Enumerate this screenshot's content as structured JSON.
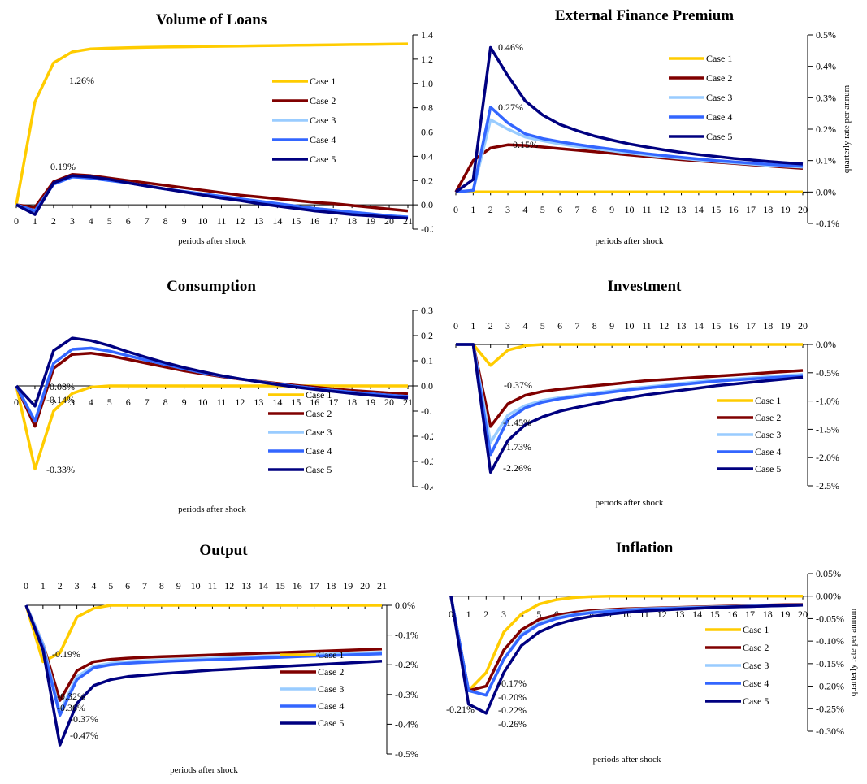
{
  "series_names": [
    "Case 1",
    "Case 2",
    "Case 3",
    "Case 4",
    "Case 5"
  ],
  "colors": [
    "#FFCC00",
    "#800000",
    "#99CCFF",
    "#3366FF",
    "#000080"
  ],
  "chart_data": [
    {
      "type": "line",
      "title": "Volume of Loans",
      "xlabel": "periods after shock",
      "ylabel": "",
      "x": [
        0,
        1,
        2,
        3,
        4,
        5,
        6,
        7,
        8,
        9,
        10,
        11,
        12,
        13,
        14,
        15,
        16,
        17,
        18,
        19,
        20,
        21
      ],
      "ylim": [
        -0.2,
        1.4
      ],
      "yticks": [
        "-0.2%",
        "0.0%",
        "0.2%",
        "0.4%",
        "0.6%",
        "0.8%",
        "1.0%",
        "1.2%",
        "1.4%"
      ],
      "legend": "middle-right",
      "annotations": [
        "1.26%",
        "0.19%"
      ],
      "series": [
        {
          "name": "Case 1",
          "values": [
            0,
            0.85,
            1.17,
            1.26,
            1.285,
            1.29,
            1.295,
            1.298,
            1.3,
            1.302,
            1.304,
            1.306,
            1.308,
            1.31,
            1.312,
            1.314,
            1.316,
            1.318,
            1.32,
            1.322,
            1.324,
            1.326
          ]
        },
        {
          "name": "Case 2",
          "values": [
            0,
            -0.02,
            0.19,
            0.25,
            0.24,
            0.22,
            0.2,
            0.18,
            0.16,
            0.14,
            0.12,
            0.1,
            0.08,
            0.065,
            0.05,
            0.035,
            0.02,
            0.01,
            -0.005,
            -0.02,
            -0.035,
            -0.05
          ]
        },
        {
          "name": "Case 3",
          "values": [
            0,
            -0.05,
            0.17,
            0.23,
            0.22,
            0.2,
            0.18,
            0.155,
            0.13,
            0.11,
            0.09,
            0.07,
            0.05,
            0.03,
            0.01,
            -0.01,
            -0.03,
            -0.045,
            -0.06,
            -0.075,
            -0.09,
            -0.1
          ]
        },
        {
          "name": "Case 4",
          "values": [
            0,
            -0.05,
            0.17,
            0.23,
            0.22,
            0.2,
            0.18,
            0.155,
            0.13,
            0.11,
            0.09,
            0.07,
            0.05,
            0.03,
            0.01,
            -0.01,
            -0.03,
            -0.045,
            -0.06,
            -0.075,
            -0.09,
            -0.1
          ]
        },
        {
          "name": "Case 5",
          "values": [
            0,
            -0.08,
            0.18,
            0.24,
            0.23,
            0.21,
            0.18,
            0.155,
            0.13,
            0.105,
            0.08,
            0.055,
            0.035,
            0.01,
            -0.01,
            -0.03,
            -0.05,
            -0.065,
            -0.08,
            -0.09,
            -0.1,
            -0.11
          ]
        }
      ]
    },
    {
      "type": "line",
      "title": "External Finance Premium",
      "xlabel": "periods after shock",
      "ylabel": "quarterly rate per annum",
      "x": [
        0,
        1,
        2,
        3,
        4,
        5,
        6,
        7,
        8,
        9,
        10,
        11,
        12,
        13,
        14,
        15,
        16,
        17,
        18,
        19,
        20
      ],
      "ylim": [
        -0.1,
        0.5
      ],
      "yticks": [
        "-0.1%",
        "0.0%",
        "0.1%",
        "0.2%",
        "0.3%",
        "0.4%",
        "0.5%"
      ],
      "legend": "top-right",
      "annotations": [
        "0.46%",
        "0.27%",
        "0.15%"
      ],
      "series": [
        {
          "name": "Case 1",
          "values": [
            0,
            0,
            0,
            0,
            0,
            0,
            0,
            0,
            0,
            0,
            0,
            0,
            0,
            0,
            0,
            0,
            0,
            0,
            0,
            0,
            0
          ]
        },
        {
          "name": "Case 2",
          "values": [
            0,
            0.1,
            0.14,
            0.15,
            0.148,
            0.143,
            0.138,
            0.133,
            0.128,
            0.123,
            0.118,
            0.113,
            0.108,
            0.103,
            0.099,
            0.095,
            0.091,
            0.087,
            0.083,
            0.079,
            0.075
          ]
        },
        {
          "name": "Case 3",
          "values": [
            0,
            0.005,
            0.23,
            0.2,
            0.175,
            0.163,
            0.153,
            0.145,
            0.138,
            0.131,
            0.124,
            0.118,
            0.112,
            0.107,
            0.102,
            0.097,
            0.093,
            0.089,
            0.085,
            0.082,
            0.079
          ]
        },
        {
          "name": "Case 4",
          "values": [
            0,
            0.005,
            0.27,
            0.22,
            0.185,
            0.17,
            0.16,
            0.151,
            0.143,
            0.136,
            0.129,
            0.122,
            0.116,
            0.11,
            0.105,
            0.1,
            0.096,
            0.092,
            0.088,
            0.085,
            0.082
          ]
        },
        {
          "name": "Case 5",
          "values": [
            0,
            0.04,
            0.46,
            0.37,
            0.29,
            0.245,
            0.215,
            0.195,
            0.178,
            0.165,
            0.153,
            0.143,
            0.134,
            0.126,
            0.119,
            0.113,
            0.107,
            0.102,
            0.097,
            0.093,
            0.089
          ]
        }
      ]
    },
    {
      "type": "line",
      "title": "Consumption",
      "xlabel": "periods after shock",
      "ylabel": "",
      "x": [
        0,
        1,
        2,
        3,
        4,
        5,
        6,
        7,
        8,
        9,
        10,
        11,
        12,
        13,
        14,
        15,
        16,
        17,
        18,
        19,
        20,
        21
      ],
      "ylim": [
        -0.4,
        0.3
      ],
      "yticks": [
        "-0.4%",
        "-0.3%",
        "-0.2%",
        "-0.1%",
        "0.0%",
        "0.1%",
        "0.2%",
        "0.3%"
      ],
      "legend": "bottom-middle",
      "annotations": [
        "-0.08%",
        "-0.14%",
        "-0.33%"
      ],
      "series": [
        {
          "name": "Case 1",
          "values": [
            0,
            -0.33,
            -0.1,
            -0.03,
            -0.005,
            0,
            0,
            0,
            0,
            0,
            0,
            0,
            0,
            0,
            0,
            0,
            0,
            0,
            0,
            0,
            0,
            0
          ]
        },
        {
          "name": "Case 2",
          "values": [
            0,
            -0.16,
            0.07,
            0.125,
            0.13,
            0.12,
            0.105,
            0.09,
            0.075,
            0.06,
            0.048,
            0.037,
            0.027,
            0.018,
            0.01,
            0.002,
            -0.005,
            -0.012,
            -0.018,
            -0.023,
            -0.028,
            -0.032
          ]
        },
        {
          "name": "Case 3",
          "values": [
            0,
            -0.14,
            0.09,
            0.145,
            0.15,
            0.138,
            0.12,
            0.102,
            0.085,
            0.068,
            0.053,
            0.04,
            0.028,
            0.017,
            0.007,
            -0.002,
            -0.01,
            -0.018,
            -0.025,
            -0.031,
            -0.037,
            -0.042
          ]
        },
        {
          "name": "Case 4",
          "values": [
            0,
            -0.14,
            0.09,
            0.145,
            0.15,
            0.138,
            0.12,
            0.102,
            0.085,
            0.068,
            0.053,
            0.04,
            0.028,
            0.017,
            0.007,
            -0.002,
            -0.01,
            -0.018,
            -0.025,
            -0.031,
            -0.037,
            -0.042
          ]
        },
        {
          "name": "Case 5",
          "values": [
            0,
            -0.08,
            0.14,
            0.19,
            0.18,
            0.16,
            0.135,
            0.113,
            0.092,
            0.073,
            0.056,
            0.041,
            0.028,
            0.016,
            0.005,
            -0.005,
            -0.014,
            -0.022,
            -0.03,
            -0.037,
            -0.043,
            -0.048
          ]
        }
      ]
    },
    {
      "type": "line",
      "title": "Investment",
      "xlabel": "periods after shock",
      "ylabel": "",
      "x": [
        0,
        1,
        2,
        3,
        4,
        5,
        6,
        7,
        8,
        9,
        10,
        11,
        12,
        13,
        14,
        15,
        16,
        17,
        18,
        19,
        20
      ],
      "ylim": [
        -2.5,
        0.0
      ],
      "yticks": [
        "-2.5%",
        "-2.0%",
        "-1.5%",
        "-1.0%",
        "-0.5%",
        "0.0%"
      ],
      "legend": "bottom-right",
      "annotations": [
        "-0.37%",
        "-1.45%",
        "-1.73%",
        "-2.26%"
      ],
      "series": [
        {
          "name": "Case 1",
          "values": [
            0,
            0,
            -0.37,
            -0.1,
            -0.02,
            0,
            0,
            0,
            0,
            0,
            0,
            0,
            0,
            0,
            0,
            0,
            0,
            0,
            0,
            0,
            0
          ]
        },
        {
          "name": "Case 2",
          "values": [
            0,
            0,
            -1.45,
            -1.05,
            -0.9,
            -0.83,
            -0.79,
            -0.76,
            -0.73,
            -0.7,
            -0.67,
            -0.64,
            -0.62,
            -0.6,
            -0.58,
            -0.56,
            -0.54,
            -0.52,
            -0.5,
            -0.48,
            -0.46
          ]
        },
        {
          "name": "Case 3",
          "values": [
            0,
            0,
            -1.73,
            -1.25,
            -1.08,
            -0.99,
            -0.94,
            -0.9,
            -0.86,
            -0.82,
            -0.78,
            -0.75,
            -0.72,
            -0.69,
            -0.66,
            -0.63,
            -0.61,
            -0.59,
            -0.57,
            -0.55,
            -0.53
          ]
        },
        {
          "name": "Case 4",
          "values": [
            0,
            0,
            -1.95,
            -1.33,
            -1.12,
            -1.02,
            -0.96,
            -0.92,
            -0.88,
            -0.84,
            -0.8,
            -0.77,
            -0.74,
            -0.71,
            -0.68,
            -0.65,
            -0.63,
            -0.61,
            -0.59,
            -0.57,
            -0.55
          ]
        },
        {
          "name": "Case 5",
          "values": [
            0,
            0,
            -2.26,
            -1.7,
            -1.42,
            -1.28,
            -1.18,
            -1.11,
            -1.05,
            -0.99,
            -0.94,
            -0.89,
            -0.85,
            -0.81,
            -0.77,
            -0.73,
            -0.7,
            -0.67,
            -0.64,
            -0.61,
            -0.58
          ]
        }
      ]
    },
    {
      "type": "line",
      "title": "Output",
      "xlabel": "periods after shock",
      "ylabel": "",
      "x": [
        0,
        1,
        2,
        3,
        4,
        5,
        6,
        7,
        8,
        9,
        10,
        11,
        12,
        13,
        14,
        15,
        16,
        17,
        18,
        19,
        20,
        21
      ],
      "ylim": [
        -0.5,
        0.0
      ],
      "yticks": [
        "-0.5%",
        "-0.4%",
        "-0.3%",
        "-0.2%",
        "-0.1%",
        "0.0%"
      ],
      "legend": "bottom-right",
      "annotations": [
        "-0.19%",
        "-0.32%",
        "-0.36%",
        "-0.37%",
        "-0.47%"
      ],
      "series": [
        {
          "name": "Case 1",
          "values": [
            0,
            -0.19,
            -0.16,
            -0.04,
            -0.01,
            0,
            0,
            0,
            0,
            0,
            0,
            0,
            0,
            0,
            0,
            0,
            0,
            0,
            0,
            0,
            0,
            0
          ]
        },
        {
          "name": "Case 2",
          "values": [
            0,
            -0.13,
            -0.32,
            -0.22,
            -0.19,
            -0.182,
            -0.178,
            -0.175,
            -0.173,
            -0.171,
            -0.169,
            -0.167,
            -0.165,
            -0.163,
            -0.161,
            -0.159,
            -0.157,
            -0.155,
            -0.153,
            -0.151,
            -0.149,
            -0.147
          ]
        },
        {
          "name": "Case 3",
          "values": [
            0,
            -0.13,
            -0.36,
            -0.24,
            -0.205,
            -0.195,
            -0.19,
            -0.187,
            -0.184,
            -0.182,
            -0.18,
            -0.178,
            -0.176,
            -0.174,
            -0.172,
            -0.17,
            -0.168,
            -0.166,
            -0.164,
            -0.162,
            -0.16,
            -0.158
          ]
        },
        {
          "name": "Case 4",
          "values": [
            0,
            -0.14,
            -0.37,
            -0.25,
            -0.21,
            -0.2,
            -0.195,
            -0.192,
            -0.189,
            -0.187,
            -0.185,
            -0.183,
            -0.181,
            -0.179,
            -0.177,
            -0.175,
            -0.173,
            -0.171,
            -0.169,
            -0.167,
            -0.165,
            -0.163
          ]
        },
        {
          "name": "Case 5",
          "values": [
            0,
            -0.15,
            -0.47,
            -0.33,
            -0.27,
            -0.25,
            -0.24,
            -0.235,
            -0.23,
            -0.226,
            -0.222,
            -0.218,
            -0.215,
            -0.212,
            -0.209,
            -0.206,
            -0.203,
            -0.2,
            -0.197,
            -0.194,
            -0.191,
            -0.188
          ]
        }
      ]
    },
    {
      "type": "line",
      "title": "Inflation",
      "xlabel": "periods after shock",
      "ylabel": "quarterly rate per annum",
      "x": [
        0,
        1,
        2,
        3,
        4,
        5,
        6,
        7,
        8,
        9,
        10,
        11,
        12,
        13,
        14,
        15,
        16,
        17,
        18,
        19,
        20
      ],
      "ylim": [
        -0.3,
        0.05
      ],
      "yticks": [
        "-0.30%",
        "-0.25%",
        "-0.20%",
        "-0.15%",
        "-0.10%",
        "-0.05%",
        "0.00%",
        "0.05%"
      ],
      "legend": "bottom-right",
      "annotations": [
        "-0.21%",
        "-0.17%",
        "-0.20%",
        "-0.22%",
        "-0.26%"
      ],
      "series": [
        {
          "name": "Case 1",
          "values": [
            0,
            -0.21,
            -0.17,
            -0.08,
            -0.04,
            -0.018,
            -0.008,
            -0.003,
            -0.001,
            0,
            0,
            0,
            0,
            0,
            0,
            0,
            0,
            0,
            0,
            0,
            0
          ]
        },
        {
          "name": "Case 2",
          "values": [
            0,
            -0.21,
            -0.2,
            -0.12,
            -0.075,
            -0.052,
            -0.042,
            -0.036,
            -0.032,
            -0.03,
            -0.028,
            -0.027,
            -0.026,
            -0.025,
            -0.024,
            -0.023,
            -0.022,
            -0.021,
            -0.02,
            -0.019,
            -0.018
          ]
        },
        {
          "name": "Case 3",
          "values": [
            0,
            -0.21,
            -0.22,
            -0.14,
            -0.085,
            -0.06,
            -0.047,
            -0.04,
            -0.035,
            -0.032,
            -0.03,
            -0.028,
            -0.027,
            -0.026,
            -0.025,
            -0.024,
            -0.023,
            -0.022,
            -0.021,
            -0.02,
            -0.019
          ]
        },
        {
          "name": "Case 4",
          "values": [
            0,
            -0.21,
            -0.22,
            -0.14,
            -0.088,
            -0.063,
            -0.05,
            -0.042,
            -0.037,
            -0.034,
            -0.031,
            -0.029,
            -0.028,
            -0.027,
            -0.026,
            -0.025,
            -0.024,
            -0.023,
            -0.022,
            -0.021,
            -0.02
          ]
        },
        {
          "name": "Case 5",
          "values": [
            0,
            -0.24,
            -0.26,
            -0.17,
            -0.11,
            -0.08,
            -0.063,
            -0.052,
            -0.045,
            -0.04,
            -0.036,
            -0.033,
            -0.031,
            -0.029,
            -0.027,
            -0.025,
            -0.024,
            -0.023,
            -0.022,
            -0.021,
            -0.02
          ]
        }
      ]
    }
  ]
}
